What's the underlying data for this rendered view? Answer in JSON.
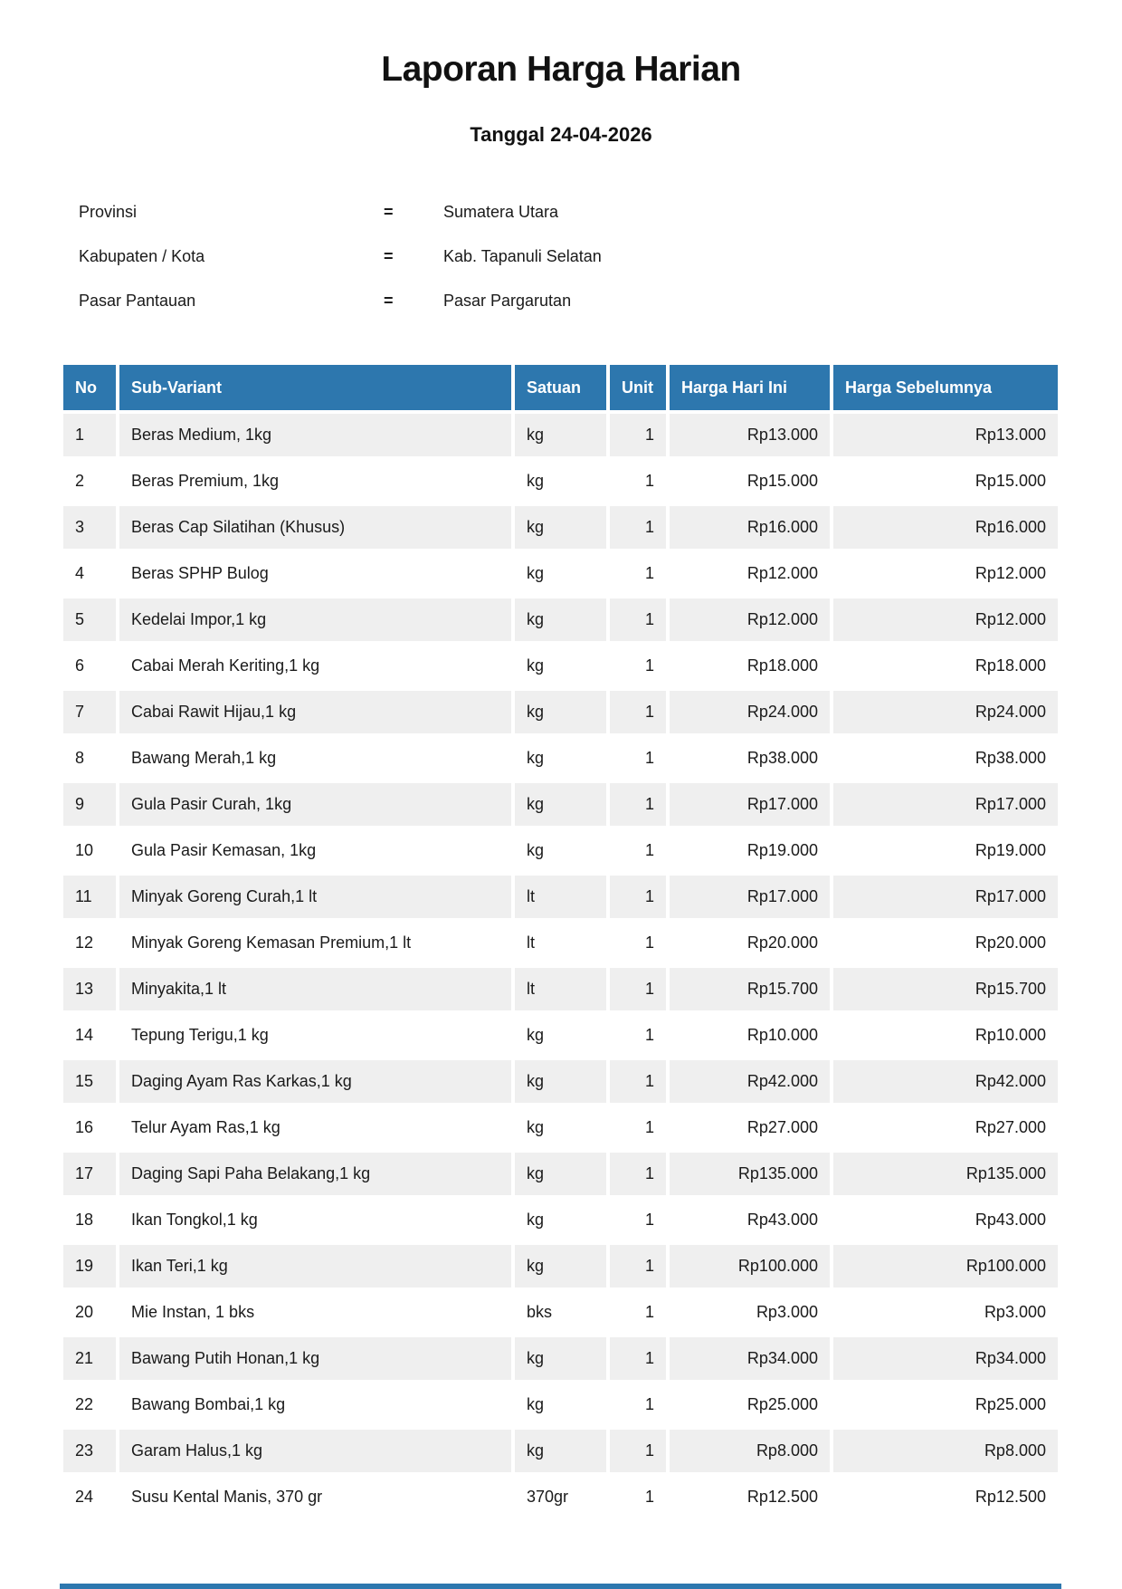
{
  "page": {
    "title": "Laporan Harga Harian",
    "subtitle": "Tanggal 24-04-2026"
  },
  "meta": {
    "equals": "=",
    "rows": [
      {
        "label": "Provinsi",
        "value": "Sumatera Utara"
      },
      {
        "label": "Kabupaten / Kota",
        "value": "Kab. Tapanuli Selatan"
      },
      {
        "label": "Pasar Pantauan",
        "value": "Pasar Pargarutan"
      }
    ]
  },
  "table": {
    "headers": [
      "No",
      "Sub-Variant",
      "Satuan",
      "Unit",
      "Harga Hari Ini",
      "Harga Sebelumnya"
    ],
    "rows": [
      [
        "1",
        "Beras Medium, 1kg",
        "kg",
        "1",
        "Rp13.000",
        "Rp13.000"
      ],
      [
        "2",
        "Beras Premium, 1kg",
        "kg",
        "1",
        "Rp15.000",
        "Rp15.000"
      ],
      [
        "3",
        "Beras Cap Silatihan (Khusus)",
        "kg",
        "1",
        "Rp16.000",
        "Rp16.000"
      ],
      [
        "4",
        "Beras SPHP Bulog",
        "kg",
        "1",
        "Rp12.000",
        "Rp12.000"
      ],
      [
        "5",
        "Kedelai Impor,1 kg",
        "kg",
        "1",
        "Rp12.000",
        "Rp12.000"
      ],
      [
        "6",
        "Cabai Merah Keriting,1 kg",
        "kg",
        "1",
        "Rp18.000",
        "Rp18.000"
      ],
      [
        "7",
        "Cabai Rawit Hijau,1 kg",
        "kg",
        "1",
        "Rp24.000",
        "Rp24.000"
      ],
      [
        "8",
        "Bawang Merah,1 kg",
        "kg",
        "1",
        "Rp38.000",
        "Rp38.000"
      ],
      [
        "9",
        "Gula Pasir Curah, 1kg",
        "kg",
        "1",
        "Rp17.000",
        "Rp17.000"
      ],
      [
        "10",
        "Gula Pasir Kemasan, 1kg",
        "kg",
        "1",
        "Rp19.000",
        "Rp19.000"
      ],
      [
        "11",
        "Minyak Goreng Curah,1 lt",
        "lt",
        "1",
        "Rp17.000",
        "Rp17.000"
      ],
      [
        "12",
        "Minyak Goreng Kemasan Premium,1 lt",
        "lt",
        "1",
        "Rp20.000",
        "Rp20.000"
      ],
      [
        "13",
        "Minyakita,1 lt",
        "lt",
        "1",
        "Rp15.700",
        "Rp15.700"
      ],
      [
        "14",
        "Tepung Terigu,1 kg",
        "kg",
        "1",
        "Rp10.000",
        "Rp10.000"
      ],
      [
        "15",
        "Daging Ayam Ras Karkas,1 kg",
        "kg",
        "1",
        "Rp42.000",
        "Rp42.000"
      ],
      [
        "16",
        "Telur Ayam Ras,1 kg",
        "kg",
        "1",
        "Rp27.000",
        "Rp27.000"
      ],
      [
        "17",
        "Daging Sapi Paha Belakang,1 kg",
        "kg",
        "1",
        "Rp135.000",
        "Rp135.000"
      ],
      [
        "18",
        "Ikan Tongkol,1 kg",
        "kg",
        "1",
        "Rp43.000",
        "Rp43.000"
      ],
      [
        "19",
        "Ikan Teri,1 kg",
        "kg",
        "1",
        "Rp100.000",
        "Rp100.000"
      ],
      [
        "20",
        "Mie Instan, 1 bks",
        "bks",
        "1",
        "Rp3.000",
        "Rp3.000"
      ],
      [
        "21",
        "Bawang Putih Honan,1 kg",
        "kg",
        "1",
        "Rp34.000",
        "Rp34.000"
      ],
      [
        "22",
        "Bawang Bombai,1 kg",
        "kg",
        "1",
        "Rp25.000",
        "Rp25.000"
      ],
      [
        "23",
        "Garam Halus,1 kg",
        "kg",
        "1",
        "Rp8.000",
        "Rp8.000"
      ],
      [
        "24",
        "Susu Kental Manis, 370 gr",
        "370gr",
        "1",
        "Rp12.500",
        "Rp12.500"
      ]
    ]
  },
  "colors": {
    "header_bg": "#2d77ae",
    "row_alt_bg": "#efefef",
    "text": "#1a1a1a"
  }
}
